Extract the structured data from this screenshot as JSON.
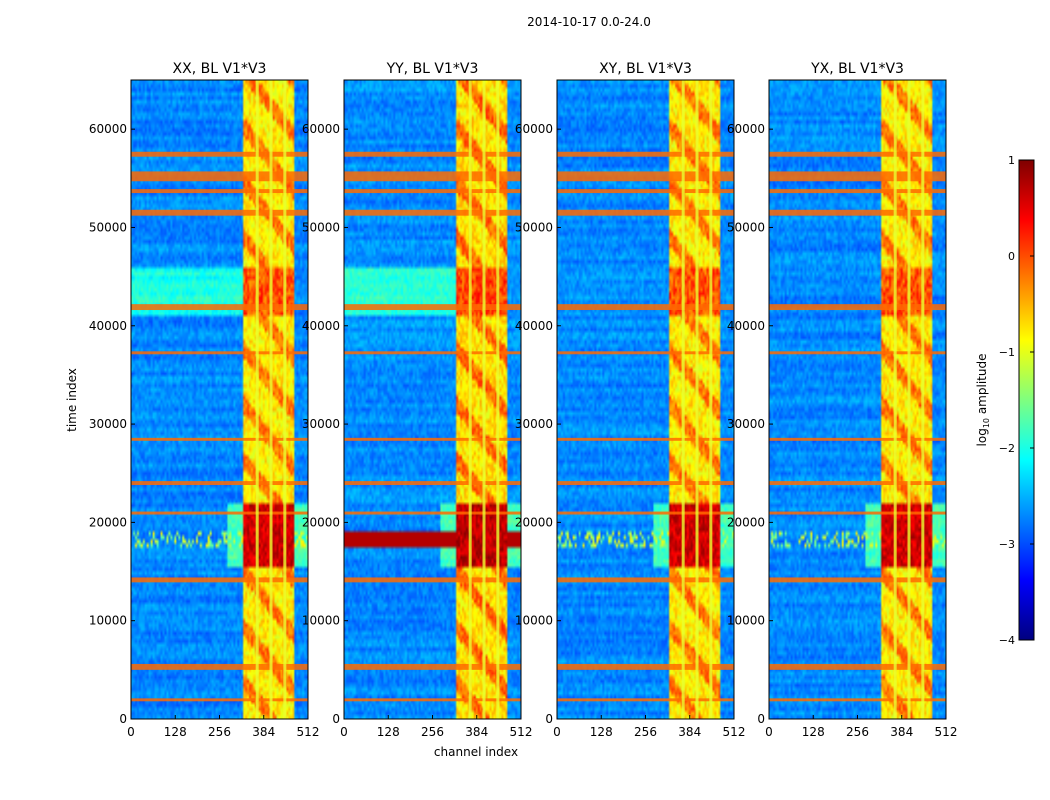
{
  "chart_data": {
    "type": "heatmap",
    "suptitle": "2014-10-17 0.0-24.0",
    "xlabel": "channel index",
    "ylabel": "time index",
    "xlim": [
      0,
      512
    ],
    "ylim": [
      0,
      65000
    ],
    "xticks": [
      0,
      128,
      256,
      384,
      512
    ],
    "yticks": [
      0,
      10000,
      20000,
      30000,
      40000,
      50000,
      60000
    ],
    "panels": [
      {
        "title": "XX, BL V1*V3",
        "level": 1.0
      },
      {
        "title": "YY, BL V1*V3",
        "level": 1.15
      },
      {
        "title": "XY, BL V1*V3",
        "level": 0.95
      },
      {
        "title": "YX, BL V1*V3",
        "level": 1.0
      }
    ],
    "features": {
      "band_channels": [
        325,
        475
      ],
      "band_dividers": [
        365,
        405,
        445
      ],
      "flagged_time_bands": [
        [
          54700,
          55700
        ],
        [
          51200,
          51800
        ],
        [
          41600,
          42200
        ],
        [
          13900,
          14400
        ],
        [
          5000,
          5600
        ],
        [
          57200,
          57700
        ],
        [
          53500,
          53900
        ],
        [
          37100,
          37400
        ],
        [
          23800,
          24200
        ],
        [
          20800,
          21100
        ],
        [
          28300,
          28600
        ],
        [
          1800,
          2100
        ]
      ],
      "bright_time_range": [
        15500,
        22000
      ],
      "secondary_bright_range": [
        41000,
        46000
      ]
    },
    "colorbar": {
      "label": "log",
      "label_sub": "10",
      "label_rest": " amplitude",
      "ticks": [
        1,
        0,
        -1,
        -2,
        -3,
        -4
      ],
      "range": [
        -4,
        1
      ],
      "colormap": "jet",
      "stops": [
        "#00007f",
        "#0000ff",
        "#007fff",
        "#00ffff",
        "#7fff7f",
        "#ffff00",
        "#ff7f00",
        "#ff0000",
        "#7f0000"
      ]
    }
  }
}
